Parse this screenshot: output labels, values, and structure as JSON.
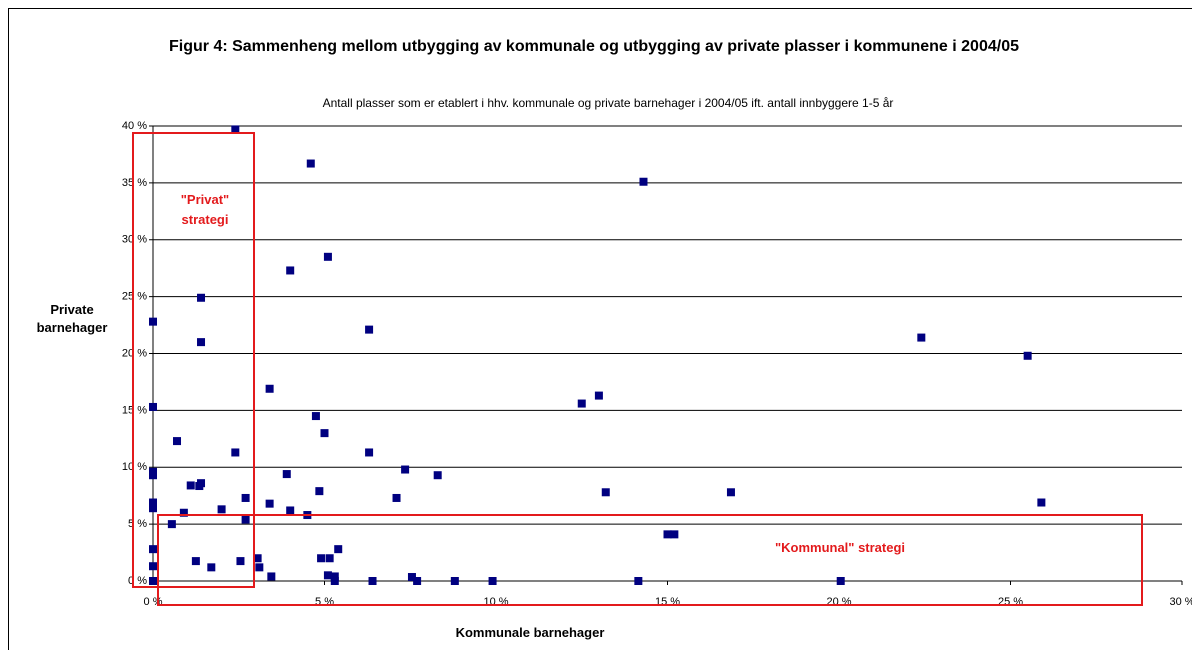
{
  "chart_data": {
    "type": "scatter",
    "title": "Figur 4: Sammenheng mellom utbygging av kommunale og utbygging av private plasser i kommunene i 2004/05",
    "subtitle": "Antall plasser som er etablert i hhv. kommunale og private barnehager i 2004/05 ift. antall innbyggere 1-5 år",
    "x_label": "Kommunale barnehager",
    "y_label": "Private barnehager",
    "annotations": [
      "\"Privat\" strategi",
      "\"Kommunal\" strategi"
    ],
    "color": "#000080",
    "grid": true,
    "xlim": [
      0,
      30
    ],
    "ylim": [
      0,
      40
    ],
    "xticks": [
      {
        "value": 0,
        "label": "0 %"
      },
      {
        "value": 5,
        "label": "5 %"
      },
      {
        "value": 10,
        "label": "10 %"
      },
      {
        "value": 15,
        "label": "15 %"
      },
      {
        "value": 20,
        "label": "20 %"
      },
      {
        "value": 25,
        "label": "25 %"
      },
      {
        "value": 30,
        "label": "30 %"
      }
    ],
    "yticks": [
      {
        "value": 0,
        "label": "0 %"
      },
      {
        "value": 5,
        "label": "5 %"
      },
      {
        "value": 10,
        "label": "10 %"
      },
      {
        "value": 15,
        "label": "15 %"
      },
      {
        "value": 20,
        "label": "20 %"
      },
      {
        "value": 25,
        "label": "25 %"
      },
      {
        "value": 30,
        "label": "30 %"
      },
      {
        "value": 35,
        "label": "35 %"
      },
      {
        "value": 40,
        "label": "40 %"
      }
    ],
    "x": [
      2.4,
      4.6,
      14.3,
      5.1,
      4.0,
      1.4,
      0,
      6.3,
      1.4,
      22.4,
      25.5,
      3.4,
      0,
      12.5,
      13.0,
      4.75,
      5.0,
      0.7,
      2.4,
      6.3,
      0,
      0,
      7.35,
      3.9,
      8.3,
      1.1,
      1.35,
      1.4,
      4.85,
      13.2,
      16.85,
      25.9,
      7.1,
      2.7,
      0,
      0,
      3.4,
      2.0,
      0.9,
      4.0,
      4.5,
      2.7,
      0.55,
      15.0,
      15.2,
      0,
      5.4,
      4.9,
      5.15,
      3.05,
      1.25,
      2.55,
      1.7,
      3.1,
      0,
      3.45,
      5.1,
      5.3,
      7.55,
      7.7,
      6.4,
      5.3,
      8.8,
      9.9,
      14.15,
      20.05,
      0
    ],
    "values": [
      39.7,
      36.7,
      35.1,
      28.5,
      27.3,
      24.9,
      22.8,
      22.1,
      21.0,
      21.4,
      19.8,
      16.9,
      15.3,
      15.6,
      16.3,
      14.5,
      13.0,
      12.3,
      11.3,
      11.3,
      9.6,
      9.3,
      9.8,
      9.4,
      9.3,
      8.4,
      8.35,
      8.6,
      7.9,
      7.8,
      7.8,
      6.9,
      7.3,
      7.3,
      6.9,
      6.4,
      6.8,
      6.3,
      6.0,
      6.2,
      5.8,
      5.4,
      5.0,
      4.1,
      4.1,
      2.8,
      2.8,
      2.0,
      2.0,
      2.0,
      1.75,
      1.75,
      1.2,
      1.2,
      1.3,
      0.4,
      0.5,
      0.4,
      0.35,
      0,
      0,
      0,
      0,
      0,
      0,
      0,
      0
    ]
  }
}
